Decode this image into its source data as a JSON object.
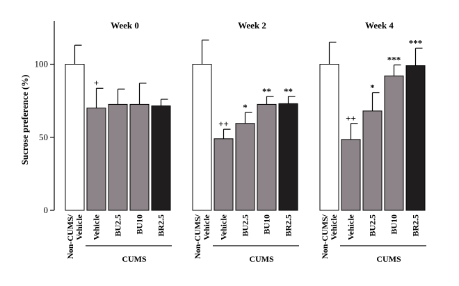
{
  "chart_data": {
    "type": "bar",
    "ylabel": "Sucrose preference (%)",
    "ylim": [
      0,
      125
    ],
    "yticks": [
      0,
      50,
      100
    ],
    "categories": [
      "Non-CUMS/\nVehicle",
      "Vehicle",
      "BU2.5",
      "BU10",
      "BR2.5"
    ],
    "group_label": "CUMS",
    "bar_fills": [
      "#ffffff",
      "#8c8488",
      "#8c8488",
      "#8c8488",
      "#1f1d1e"
    ],
    "panels": [
      {
        "title": "Week 0",
        "values": [
          100,
          70,
          72.5,
          72.5,
          71.5
        ],
        "errors": [
          13,
          13.5,
          10.5,
          14.5,
          4.5
        ],
        "significance": [
          "",
          "+",
          "",
          "",
          ""
        ]
      },
      {
        "title": "Week 2",
        "values": [
          100,
          49,
          59.5,
          72.5,
          73
        ],
        "errors": [
          16.5,
          6.5,
          7.5,
          5.5,
          5
        ],
        "significance": [
          "",
          "++",
          "*",
          "**",
          "**"
        ]
      },
      {
        "title": "Week 4",
        "values": [
          100,
          48.5,
          68,
          92,
          99
        ],
        "errors": [
          15,
          11,
          12.5,
          7.5,
          12
        ],
        "significance": [
          "",
          "++",
          "*",
          "***",
          "***"
        ]
      }
    ]
  }
}
